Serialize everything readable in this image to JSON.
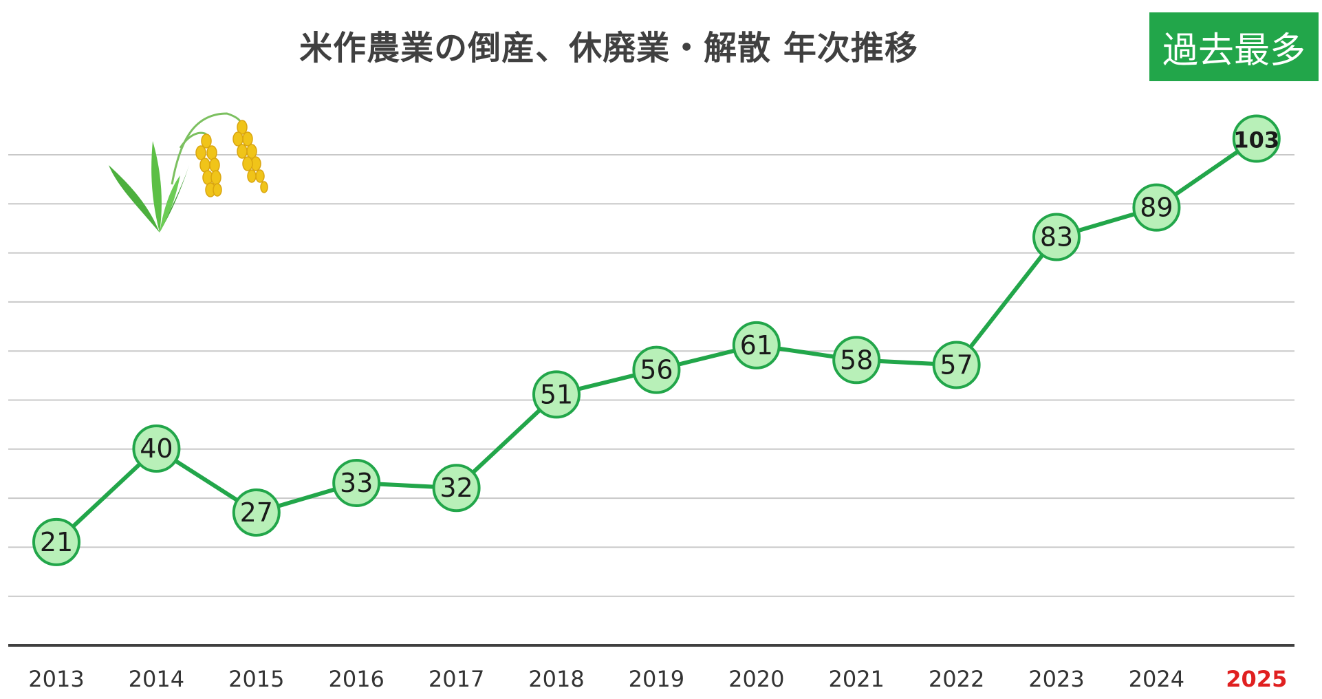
{
  "chart_data": {
    "type": "line",
    "title": "米作農業の倒産、休廃業・解散 年次推移",
    "badge": "過去最多",
    "categories": [
      "2013",
      "2014",
      "2015",
      "2016",
      "2017",
      "2018",
      "2019",
      "2020",
      "2021",
      "2022",
      "2023",
      "2024",
      "2025"
    ],
    "series": [
      {
        "values": [
          21,
          40,
          27,
          33,
          32,
          51,
          56,
          61,
          58,
          57,
          83,
          89,
          103
        ]
      }
    ],
    "ylim": [
      0,
      113
    ],
    "grid": true,
    "legend": "none",
    "colors": {
      "line": "#22a64a",
      "marker_fill": "#b8f0b8",
      "marker_stroke": "#22a64a",
      "badge_bg": "#22a64a",
      "highlight_label": "#e02020",
      "gridline": "#c8c8c8",
      "axis": "#404040"
    },
    "highlight_category": "2025"
  },
  "decoration": {
    "icon": "rice-plant-icon"
  }
}
